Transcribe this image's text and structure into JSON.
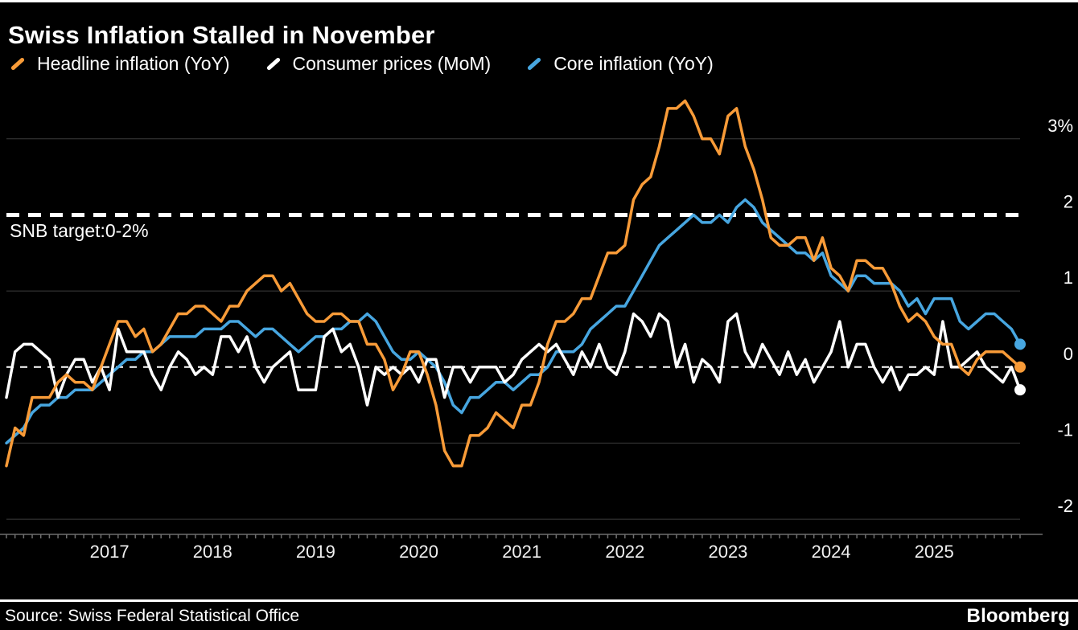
{
  "title": "Swiss Inflation Stalled in November",
  "legend": [
    {
      "label": "Headline inflation (YoY)",
      "color": "#F89B38"
    },
    {
      "label": "Consumer prices (MoM)",
      "color": "#FFFFFF"
    },
    {
      "label": "Core inflation (YoY)",
      "color": "#47A6E0"
    }
  ],
  "source": "Source: Swiss Federal Statistical Office",
  "brand": "Bloomberg",
  "colors": {
    "background": "#000000",
    "text": "#FFFFFF",
    "grid": "#3C3C3C",
    "axis": "#6E6E6E",
    "target_line": "#FFFFFF",
    "zero_line": "#FFFFFF"
  },
  "chart_data": {
    "type": "line",
    "title": "Swiss Inflation Stalled in November",
    "x_unit": "month",
    "x_range": [
      "2016-01",
      "2025-11"
    ],
    "x_tick_labels": [
      "2017",
      "2018",
      "2019",
      "2020",
      "2021",
      "2022",
      "2023",
      "2024",
      "2025"
    ],
    "y_ticks": [
      3,
      2,
      1,
      0,
      -1,
      -2
    ],
    "y_tick_labels": [
      "3%",
      "2",
      "1",
      "0",
      "-1",
      "-2"
    ],
    "ylim": [
      -2.2,
      3.6
    ],
    "grid": "horizontal-faint",
    "legend_position": "top-left",
    "target_line": {
      "value": 2,
      "label": "SNB target:0-2%"
    },
    "zero_line": {
      "value": 0
    },
    "series": [
      {
        "name": "Headline inflation (YoY)",
        "color": "#F89B38",
        "values": [
          -1.3,
          -0.8,
          -0.9,
          -0.4,
          -0.4,
          -0.4,
          -0.2,
          -0.1,
          -0.2,
          -0.2,
          -0.3,
          0.0,
          0.3,
          0.6,
          0.6,
          0.4,
          0.5,
          0.2,
          0.3,
          0.5,
          0.7,
          0.7,
          0.8,
          0.8,
          0.7,
          0.6,
          0.8,
          0.8,
          1.0,
          1.1,
          1.2,
          1.2,
          1.0,
          1.1,
          0.9,
          0.7,
          0.6,
          0.6,
          0.7,
          0.7,
          0.6,
          0.6,
          0.3,
          0.3,
          0.1,
          -0.3,
          -0.1,
          0.2,
          0.2,
          -0.1,
          -0.5,
          -1.1,
          -1.3,
          -1.3,
          -0.9,
          -0.9,
          -0.8,
          -0.6,
          -0.7,
          -0.8,
          -0.5,
          -0.5,
          -0.2,
          0.3,
          0.6,
          0.6,
          0.7,
          0.9,
          0.9,
          1.2,
          1.5,
          1.5,
          1.6,
          2.2,
          2.4,
          2.5,
          2.9,
          3.4,
          3.4,
          3.5,
          3.3,
          3.0,
          3.0,
          2.8,
          3.3,
          3.4,
          2.9,
          2.6,
          2.2,
          1.7,
          1.6,
          1.6,
          1.7,
          1.7,
          1.4,
          1.7,
          1.3,
          1.2,
          1.0,
          1.4,
          1.4,
          1.3,
          1.3,
          1.1,
          0.8,
          0.6,
          0.7,
          0.6,
          0.4,
          0.3,
          0.3,
          0.0,
          -0.1,
          0.1,
          0.2,
          0.2,
          0.2,
          0.1,
          0.0
        ]
      },
      {
        "name": "Consumer prices (MoM)",
        "color": "#FFFFFF",
        "values": [
          -0.4,
          0.2,
          0.3,
          0.3,
          0.2,
          0.1,
          -0.4,
          -0.1,
          0.1,
          0.1,
          -0.2,
          0.0,
          -0.3,
          0.5,
          0.2,
          0.2,
          0.2,
          -0.1,
          -0.3,
          0.0,
          0.2,
          0.1,
          -0.1,
          0.0,
          -0.1,
          0.4,
          0.4,
          0.2,
          0.4,
          0.0,
          -0.2,
          0.0,
          0.1,
          0.2,
          -0.3,
          -0.3,
          -0.3,
          0.4,
          0.5,
          0.2,
          0.3,
          0.0,
          -0.5,
          0.0,
          -0.1,
          0.0,
          -0.1,
          0.0,
          -0.2,
          0.1,
          0.1,
          -0.4,
          0.0,
          0.0,
          -0.2,
          0.0,
          0.0,
          0.0,
          -0.2,
          -0.1,
          0.1,
          0.2,
          0.3,
          0.2,
          0.3,
          0.1,
          -0.1,
          0.2,
          0.0,
          0.3,
          0.0,
          -0.1,
          0.2,
          0.7,
          0.6,
          0.4,
          0.7,
          0.6,
          0.0,
          0.3,
          -0.2,
          0.1,
          0.0,
          -0.2,
          0.6,
          0.7,
          0.2,
          0.0,
          0.3,
          0.1,
          -0.1,
          0.2,
          -0.1,
          0.1,
          -0.2,
          0.0,
          0.2,
          0.6,
          0.0,
          0.3,
          0.3,
          0.0,
          -0.2,
          0.0,
          -0.3,
          -0.1,
          -0.1,
          0.0,
          -0.1,
          0.6,
          0.0,
          0.0,
          0.1,
          0.2,
          0.0,
          -0.1,
          -0.2,
          0.0,
          -0.3
        ]
      },
      {
        "name": "Core inflation (YoY)",
        "color": "#47A6E0",
        "values": [
          -1.0,
          -0.9,
          -0.8,
          -0.6,
          -0.5,
          -0.5,
          -0.4,
          -0.4,
          -0.3,
          -0.3,
          -0.3,
          -0.2,
          -0.1,
          0.0,
          0.1,
          0.1,
          0.2,
          0.2,
          0.3,
          0.4,
          0.4,
          0.4,
          0.4,
          0.5,
          0.5,
          0.5,
          0.6,
          0.6,
          0.5,
          0.4,
          0.5,
          0.5,
          0.4,
          0.3,
          0.2,
          0.3,
          0.4,
          0.4,
          0.5,
          0.5,
          0.6,
          0.6,
          0.7,
          0.6,
          0.4,
          0.2,
          0.1,
          0.1,
          0.2,
          0.1,
          0.0,
          -0.2,
          -0.5,
          -0.6,
          -0.4,
          -0.4,
          -0.3,
          -0.2,
          -0.2,
          -0.3,
          -0.2,
          -0.1,
          -0.1,
          0.0,
          0.2,
          0.2,
          0.2,
          0.3,
          0.5,
          0.6,
          0.7,
          0.8,
          0.8,
          1.0,
          1.2,
          1.4,
          1.6,
          1.7,
          1.8,
          1.9,
          2.0,
          1.9,
          1.9,
          2.0,
          1.9,
          2.1,
          2.2,
          2.1,
          1.9,
          1.8,
          1.7,
          1.6,
          1.5,
          1.5,
          1.4,
          1.5,
          1.2,
          1.1,
          1.0,
          1.2,
          1.2,
          1.1,
          1.1,
          1.1,
          1.0,
          0.8,
          0.9,
          0.7,
          0.9,
          0.9,
          0.9,
          0.6,
          0.5,
          0.6,
          0.7,
          0.7,
          0.6,
          0.5,
          0.3
        ]
      }
    ]
  }
}
